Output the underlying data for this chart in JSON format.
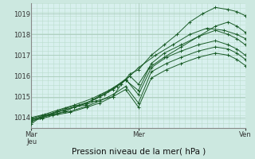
{
  "bg_color": "#cce8e0",
  "plot_bg": "#d8f0ee",
  "grid_color_major": "#aaccbb",
  "grid_color_minor": "#bbddcc",
  "line_color": "#1a5c28",
  "xlabel": "Pression niveau de la mer( hPa )",
  "xlabel_fontsize": 7.5,
  "ytick_fontsize": 6,
  "xtick_fontsize": 6,
  "yticks": [
    1014,
    1015,
    1016,
    1017,
    1018,
    1019
  ],
  "xtick_labels": [
    "Mar\nJeu",
    "Mer",
    "Ven"
  ],
  "xtick_positions": [
    0.0,
    0.5,
    1.0
  ],
  "ylim": [
    1013.5,
    1019.5
  ],
  "xlim": [
    0.0,
    1.0
  ],
  "series": [
    {
      "x": [
        0.0,
        0.04,
        0.08,
        0.12,
        0.16,
        0.2,
        0.25,
        0.3,
        0.38,
        0.42,
        0.46,
        0.5,
        0.56,
        0.62,
        0.68,
        0.74,
        0.8,
        0.86,
        0.92,
        0.96,
        1.0
      ],
      "y": [
        1013.7,
        1014.0,
        1014.1,
        1014.2,
        1014.3,
        1014.5,
        1014.6,
        1014.8,
        1015.0,
        1015.6,
        1016.1,
        1016.3,
        1017.0,
        1017.5,
        1018.0,
        1018.6,
        1019.0,
        1019.3,
        1019.2,
        1019.1,
        1018.9
      ]
    },
    {
      "x": [
        0.0,
        0.04,
        0.08,
        0.12,
        0.16,
        0.22,
        0.28,
        0.34,
        0.4,
        0.46,
        0.5,
        0.55,
        0.62,
        0.7,
        0.78,
        0.86,
        0.92,
        0.96,
        1.0
      ],
      "y": [
        1013.8,
        1014.0,
        1014.15,
        1014.3,
        1014.45,
        1014.6,
        1014.8,
        1015.1,
        1015.5,
        1016.0,
        1015.6,
        1016.4,
        1016.9,
        1017.4,
        1017.9,
        1018.4,
        1018.6,
        1018.4,
        1018.1
      ]
    },
    {
      "x": [
        0.0,
        0.05,
        0.1,
        0.15,
        0.2,
        0.26,
        0.32,
        0.38,
        0.44,
        0.5,
        0.56,
        0.62,
        0.7,
        0.78,
        0.86,
        0.92,
        0.96,
        1.0
      ],
      "y": [
        1013.9,
        1014.05,
        1014.2,
        1014.35,
        1014.5,
        1014.7,
        1015.0,
        1015.35,
        1015.8,
        1015.3,
        1016.6,
        1017.1,
        1017.5,
        1017.9,
        1018.2,
        1018.0,
        1017.8,
        1017.5
      ]
    },
    {
      "x": [
        0.0,
        0.05,
        0.1,
        0.15,
        0.2,
        0.26,
        0.32,
        0.38,
        0.44,
        0.5,
        0.56,
        0.63,
        0.7,
        0.78,
        0.86,
        0.92,
        0.96,
        1.0
      ],
      "y": [
        1013.95,
        1014.1,
        1014.2,
        1014.35,
        1014.5,
        1014.7,
        1015.05,
        1015.4,
        1015.85,
        1015.1,
        1016.4,
        1016.9,
        1017.2,
        1017.5,
        1017.7,
        1017.5,
        1017.3,
        1017.0
      ]
    },
    {
      "x": [
        0.0,
        0.05,
        0.1,
        0.18,
        0.26,
        0.32,
        0.38,
        0.44,
        0.5,
        0.56,
        0.63,
        0.7,
        0.78,
        0.86,
        0.92,
        0.96,
        1.0
      ],
      "y": [
        1013.9,
        1014.0,
        1014.15,
        1014.3,
        1014.55,
        1014.8,
        1015.1,
        1015.5,
        1014.7,
        1016.2,
        1016.6,
        1016.9,
        1017.2,
        1017.4,
        1017.3,
        1017.1,
        1016.8
      ]
    },
    {
      "x": [
        0.0,
        0.05,
        0.1,
        0.18,
        0.26,
        0.32,
        0.38,
        0.44,
        0.5,
        0.56,
        0.63,
        0.7,
        0.78,
        0.86,
        0.92,
        0.96,
        1.0
      ],
      "y": [
        1013.85,
        1013.95,
        1014.1,
        1014.25,
        1014.5,
        1014.7,
        1015.0,
        1015.35,
        1014.5,
        1015.9,
        1016.3,
        1016.6,
        1016.9,
        1017.1,
        1017.0,
        1016.8,
        1016.5
      ]
    },
    {
      "x": [
        0.0,
        0.06,
        0.12,
        0.2,
        0.28,
        0.36,
        0.44,
        0.5,
        0.58,
        0.66,
        0.74,
        0.82,
        0.9,
        0.96,
        1.0
      ],
      "y": [
        1014.0,
        1014.15,
        1014.35,
        1014.6,
        1014.9,
        1015.3,
        1015.8,
        1016.4,
        1017.0,
        1017.5,
        1018.0,
        1018.3,
        1018.2,
        1018.0,
        1017.8
      ]
    }
  ]
}
